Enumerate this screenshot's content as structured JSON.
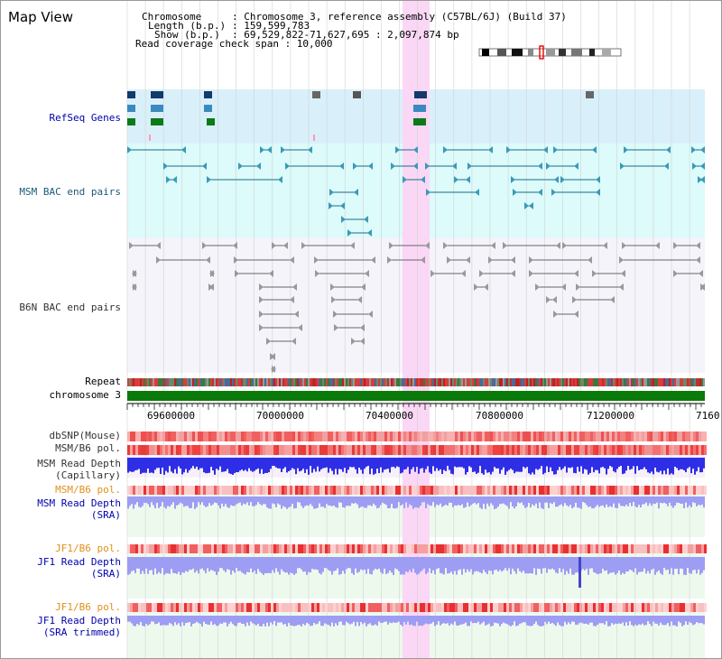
{
  "title": "Map View",
  "header": {
    "chromosome_key": "Chromosome",
    "chromosome_val": ": Chromosome 3, reference assembly (C57BL/6J) (Build 37)",
    "length_key": "Length (b.p.)",
    "length_val": ": 159,599,783",
    "show_key": "Show (b.p.)",
    "show_val": ": 69,529,822-71,627,695 : 2,097,874 bp",
    "read_coverage": "Read coverage check span : 10,000"
  },
  "tracks": {
    "refseq": "RefSeq Genes",
    "msm_bac": "MSM BAC end pairs",
    "b6n_bac": "B6N BAC end pairs",
    "repeat": "Repeat",
    "chromosome": "chromosome 3",
    "dbsnp": "dbSNP(Mouse)",
    "msm_b6_pol_1": "MSM/B6 pol.",
    "msm_depth_cap_1": "MSM Read Depth",
    "msm_depth_cap_2": "(Capillary)",
    "msm_b6_pol_2": "MSM/B6 pol.",
    "msm_depth_sra_1": "MSM Read Depth",
    "msm_depth_sra_2": "(SRA)",
    "jf1_b6_pol_1": "JF1/B6 pol.",
    "jf1_depth_sra_1": "JF1 Read Depth",
    "jf1_depth_sra_2": "(SRA)",
    "jf1_b6_pol_2": "JF1/B6 pol.",
    "jf1_depth_trim_1": "JF1 Read Depth",
    "jf1_depth_trim_2": "(SRA trimmed)"
  },
  "axis_ticks": [
    "69600000",
    "70000000",
    "70400000",
    "70800000",
    "71200000",
    "7160"
  ],
  "colors": {
    "highlight": "#fad7f5",
    "refseq_bg": "#d9f0fb",
    "msm_bg": "#dcfbfa",
    "b6n_bg": "#f4f4fa",
    "chromosome_bar": "#0a7a0a",
    "depth_blue": "#2e2ee6",
    "depth_light_blue": "#9d9df3",
    "pol_red": "#f03030"
  }
}
